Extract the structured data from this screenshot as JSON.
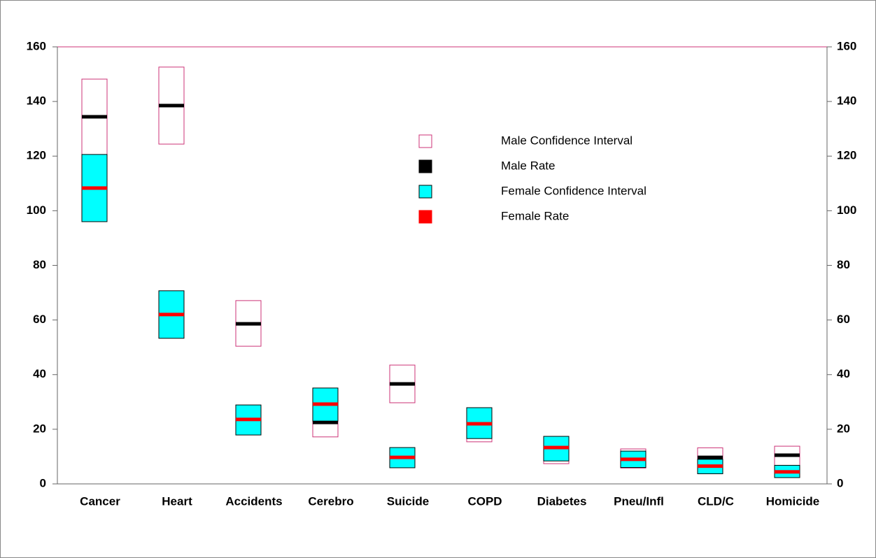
{
  "chart_data": {
    "type": "interval",
    "categories": [
      "Cancer",
      "Heart",
      "Accidents",
      "Cerebro",
      "Suicide",
      "COPD",
      "Diabetes",
      "Pneu/Infl",
      "CLD/C",
      "Homicide"
    ],
    "series": [
      {
        "name": "Male Confidence Interval",
        "color": "#cc3377",
        "kind": "ci",
        "low": [
          120,
          124.4,
          50.4,
          17.2,
          29.7,
          15.4,
          7.4,
          5.8,
          5,
          3
        ],
        "high": [
          148.2,
          152.6,
          67.1,
          28,
          43.5,
          24,
          12,
          12.8,
          13.2,
          13.8
        ]
      },
      {
        "name": "Male Rate",
        "color": "#000000",
        "kind": "rate",
        "values": [
          134.4,
          138.5,
          58.6,
          22.5,
          36.6,
          20,
          10,
          9,
          9.7,
          10.5
        ]
      },
      {
        "name": "Female Confidence Interval",
        "color": "#00ffff",
        "kind": "ci",
        "low": [
          96,
          53.3,
          17.9,
          23,
          5.9,
          16.6,
          8.4,
          6,
          3.7,
          2.3
        ],
        "high": [
          120.6,
          70.7,
          28.9,
          35.1,
          13.3,
          27.9,
          17.4,
          12,
          9,
          6.8
        ]
      },
      {
        "name": "Female Rate",
        "color": "#ff0000",
        "kind": "rate",
        "values": [
          108.3,
          62,
          23.6,
          29.2,
          9.7,
          22,
          13.3,
          9,
          6.5,
          4.4
        ]
      }
    ],
    "ylim": [
      0,
      160
    ],
    "yticks": [
      0,
      20,
      40,
      60,
      80,
      100,
      120,
      140,
      160
    ],
    "y2lim": [
      0,
      160
    ],
    "y2ticks": [
      0,
      20,
      40,
      60,
      80,
      100,
      120,
      140,
      160
    ]
  }
}
